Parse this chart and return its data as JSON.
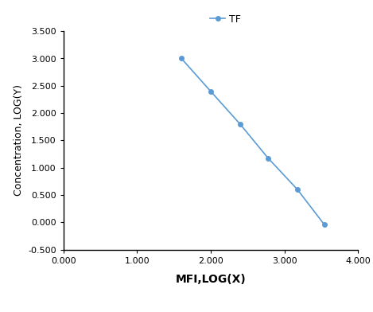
{
  "x": [
    1.602,
    2.0,
    2.398,
    2.778,
    3.176,
    3.544
  ],
  "y": [
    3.0,
    2.398,
    1.799,
    1.176,
    0.602,
    -0.046
  ],
  "line_color": "#5b9bd5",
  "marker": "o",
  "marker_size": 4,
  "legend_label": "TF",
  "xlabel": "MFI,LOG(X)",
  "ylabel": "Concentration, LOG(Y)",
  "xlim": [
    0.0,
    4.0
  ],
  "ylim": [
    -0.5,
    3.5
  ],
  "xticks": [
    0.0,
    1.0,
    2.0,
    3.0,
    4.0
  ],
  "yticks": [
    -0.5,
    0.0,
    0.5,
    1.0,
    1.5,
    2.0,
    2.5,
    3.0,
    3.5
  ],
  "xlabel_fontsize": 10,
  "ylabel_fontsize": 9,
  "tick_fontsize": 8,
  "legend_fontsize": 9,
  "background_color": "#ffffff"
}
